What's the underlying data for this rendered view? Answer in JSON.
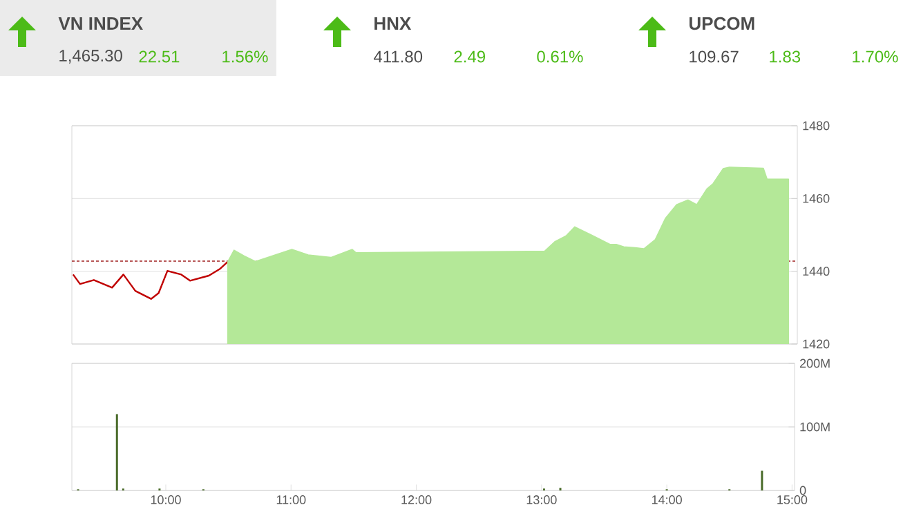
{
  "chart_data": [
    {
      "type": "other",
      "annotations": [
        "VN INDEX",
        "1,465.30",
        "22.51",
        "1.56%",
        "HNX",
        "411.80",
        "2.49",
        "0.61%",
        "UPCOM",
        "109.67",
        "1.83",
        "1.70%"
      ],
      "color": "#4cbb17"
    },
    {
      "type": "line",
      "xlim": [
        9.25,
        15.02
      ],
      "ylim": [
        1420,
        1480
      ],
      "yticks": [
        1420,
        1440,
        1460,
        1480
      ],
      "grid": "y",
      "tick_labels": "y",
      "ref_lines": [
        {
          "axis": "y",
          "value": 1442.79,
          "color": "#a02020",
          "line_style": "dashed"
        }
      ],
      "series": [
        {
          "type": "line",
          "color": "#c00000",
          "x": [
            9.26,
            9.315,
            9.425,
            9.57,
            9.66,
            9.755,
            9.88,
            9.94,
            10.01,
            10.12,
            10.19,
            10.34,
            10.43,
            10.49
          ],
          "values": [
            1439.1,
            1436.5,
            1437.6,
            1435.5,
            1439.1,
            1434.6,
            1432.4,
            1434.0,
            1440.1,
            1439.1,
            1437.4,
            1438.8,
            1440.7,
            1442.6
          ]
        },
        {
          "type": "area",
          "color": "#b4e898",
          "x": [
            10.49,
            10.54,
            10.62,
            10.71,
            11.0,
            11.13,
            11.31,
            11.48,
            11.51,
            13.01,
            13.09,
            13.18,
            13.25,
            13.38,
            13.53,
            13.58,
            13.64,
            13.73,
            13.8,
            13.89,
            13.97,
            14.06,
            14.15,
            14.22,
            14.3,
            14.35,
            14.43,
            14.48,
            14.75,
            14.78,
            14.95
          ],
          "values": [
            1442.6,
            1445.8,
            1444.2,
            1442.7,
            1446.0,
            1444.5,
            1443.8,
            1446.0,
            1445.1,
            1445.5,
            1448.1,
            1449.7,
            1452.2,
            1450.0,
            1447.4,
            1447.4,
            1446.7,
            1446.5,
            1446.2,
            1448.7,
            1454.5,
            1458.3,
            1459.6,
            1458.3,
            1462.6,
            1464.1,
            1468.2,
            1468.6,
            1468.3,
            1465.3,
            1465.3
          ]
        }
      ]
    },
    {
      "type": "bar",
      "color": "#4a6b2a",
      "xlim": [
        9.25,
        15.02
      ],
      "ylim": [
        0,
        200
      ],
      "grid": "y",
      "xticks": [
        {
          "value": 10,
          "label": "10:00"
        },
        {
          "value": 11,
          "label": "11:00"
        },
        {
          "value": 12,
          "label": "12:00"
        },
        {
          "value": 13,
          "label": "13:00"
        },
        {
          "value": 14,
          "label": "14:00"
        },
        {
          "value": 15,
          "label": "15:00"
        }
      ],
      "yticks": [
        0,
        {
          "value": 100,
          "label": "100M"
        },
        {
          "value": 200,
          "label": "200M"
        }
      ],
      "x": [
        9.3,
        9.61,
        9.66,
        9.95,
        10.3,
        13.02,
        13.15,
        14.0,
        14.5,
        14.76
      ],
      "values": [
        2,
        120,
        3,
        3,
        2,
        3,
        4,
        2,
        2,
        31
      ]
    }
  ]
}
